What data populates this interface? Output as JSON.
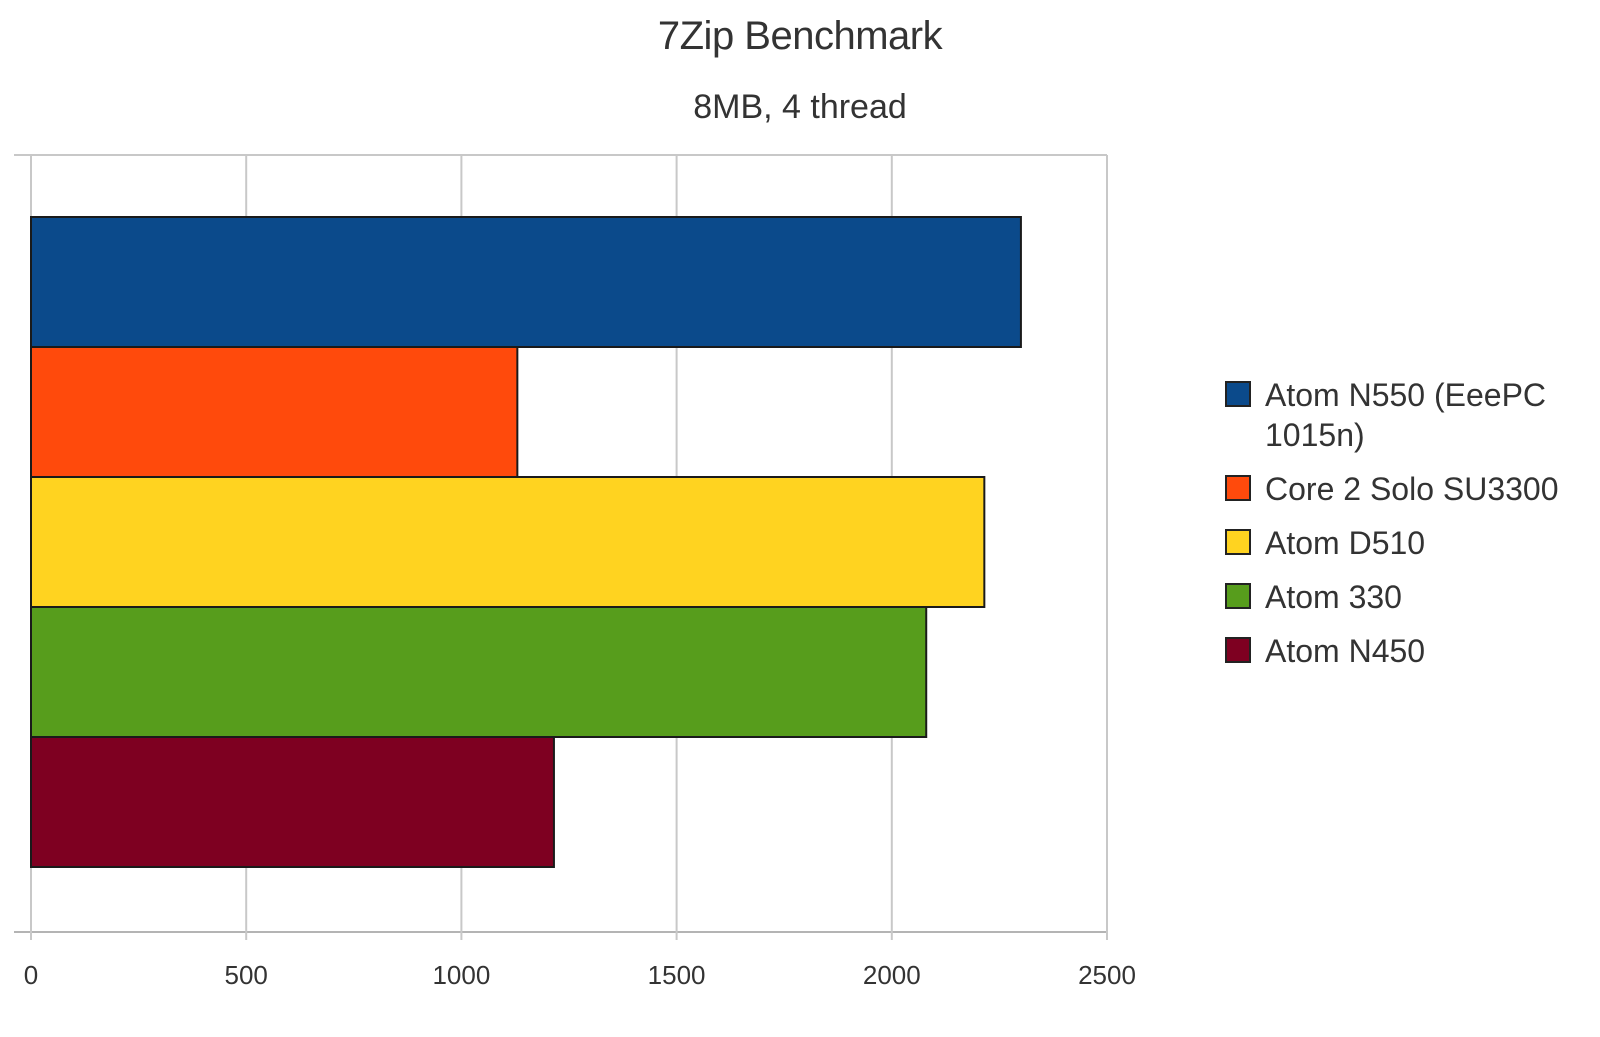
{
  "chart_data": {
    "type": "bar",
    "orientation": "horizontal",
    "title": "7Zip Benchmark",
    "subtitle": "8MB, 4 thread",
    "xlabel": "",
    "ylabel": "",
    "xlim": [
      0,
      2500
    ],
    "x_ticks": [
      "0",
      "500",
      "1000",
      "1500",
      "2000",
      "2500"
    ],
    "grid": true,
    "legend_position": "right",
    "series": [
      {
        "name": "Atom N550 (EeePC 1015n)",
        "value": 2300,
        "color": "#0b4a8b"
      },
      {
        "name": "Core 2 Solo SU3300",
        "value": 1130,
        "color": "#ff4a0c"
      },
      {
        "name": "Atom D510",
        "value": 2215,
        "color": "#ffd320"
      },
      {
        "name": "Atom 330",
        "value": 2080,
        "color": "#579d1c"
      },
      {
        "name": "Atom N450",
        "value": 1215,
        "color": "#7e0021"
      }
    ]
  }
}
